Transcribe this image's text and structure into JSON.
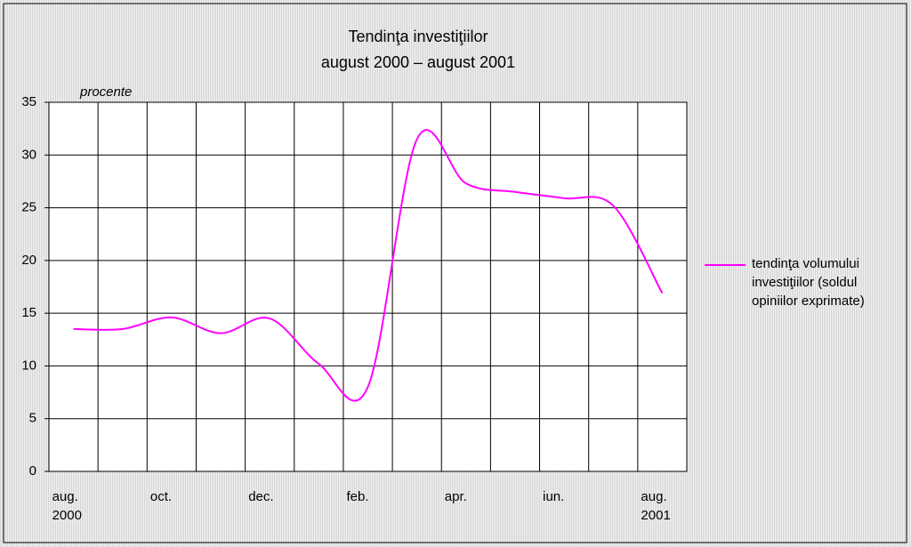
{
  "chart_data": {
    "type": "line",
    "title": "Tendinţa investiţiilor",
    "subtitle": "august 2000 – august 2001",
    "y_label": "procente",
    "categories": [
      "aug. 2000",
      null,
      "oct.",
      null,
      "dec.",
      null,
      "feb.",
      null,
      "apr.",
      null,
      "iun.",
      null,
      "aug. 2001"
    ],
    "series": [
      {
        "name": "tendinţa volumului investiţiilor (soldul opiniilor exprimate)",
        "color": "#ff00ff",
        "values": [
          13.5,
          13.5,
          14.6,
          13.1,
          14.5,
          10.2,
          8,
          31.5,
          27.3,
          26.5,
          25.9,
          25.2,
          16.9
        ]
      }
    ],
    "ylim": [
      0,
      35
    ],
    "yticks": [
      0,
      5,
      10,
      15,
      20,
      25,
      30,
      35
    ],
    "grid": true,
    "legend": "right",
    "smooth": true
  }
}
